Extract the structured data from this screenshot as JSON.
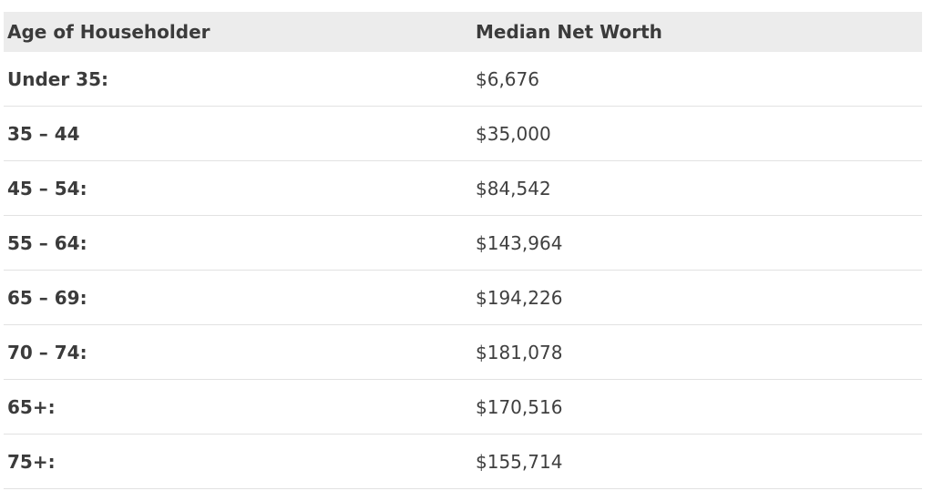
{
  "table": {
    "columns": [
      "Age of Householder",
      "Median Net Worth"
    ],
    "rows": [
      {
        "age": "Under 35:",
        "net_worth": "$6,676"
      },
      {
        "age": "35 – 44",
        "net_worth": "$35,000"
      },
      {
        "age": "45 – 54:",
        "net_worth": "$84,542"
      },
      {
        "age": "55 – 64:",
        "net_worth": "$143,964"
      },
      {
        "age": "65 – 69:",
        "net_worth": "$194,226"
      },
      {
        "age": "70 – 74:",
        "net_worth": "$181,078"
      },
      {
        "age": "65+:",
        "net_worth": "$170,516"
      },
      {
        "age": "75+:",
        "net_worth": "$155,714"
      }
    ]
  }
}
